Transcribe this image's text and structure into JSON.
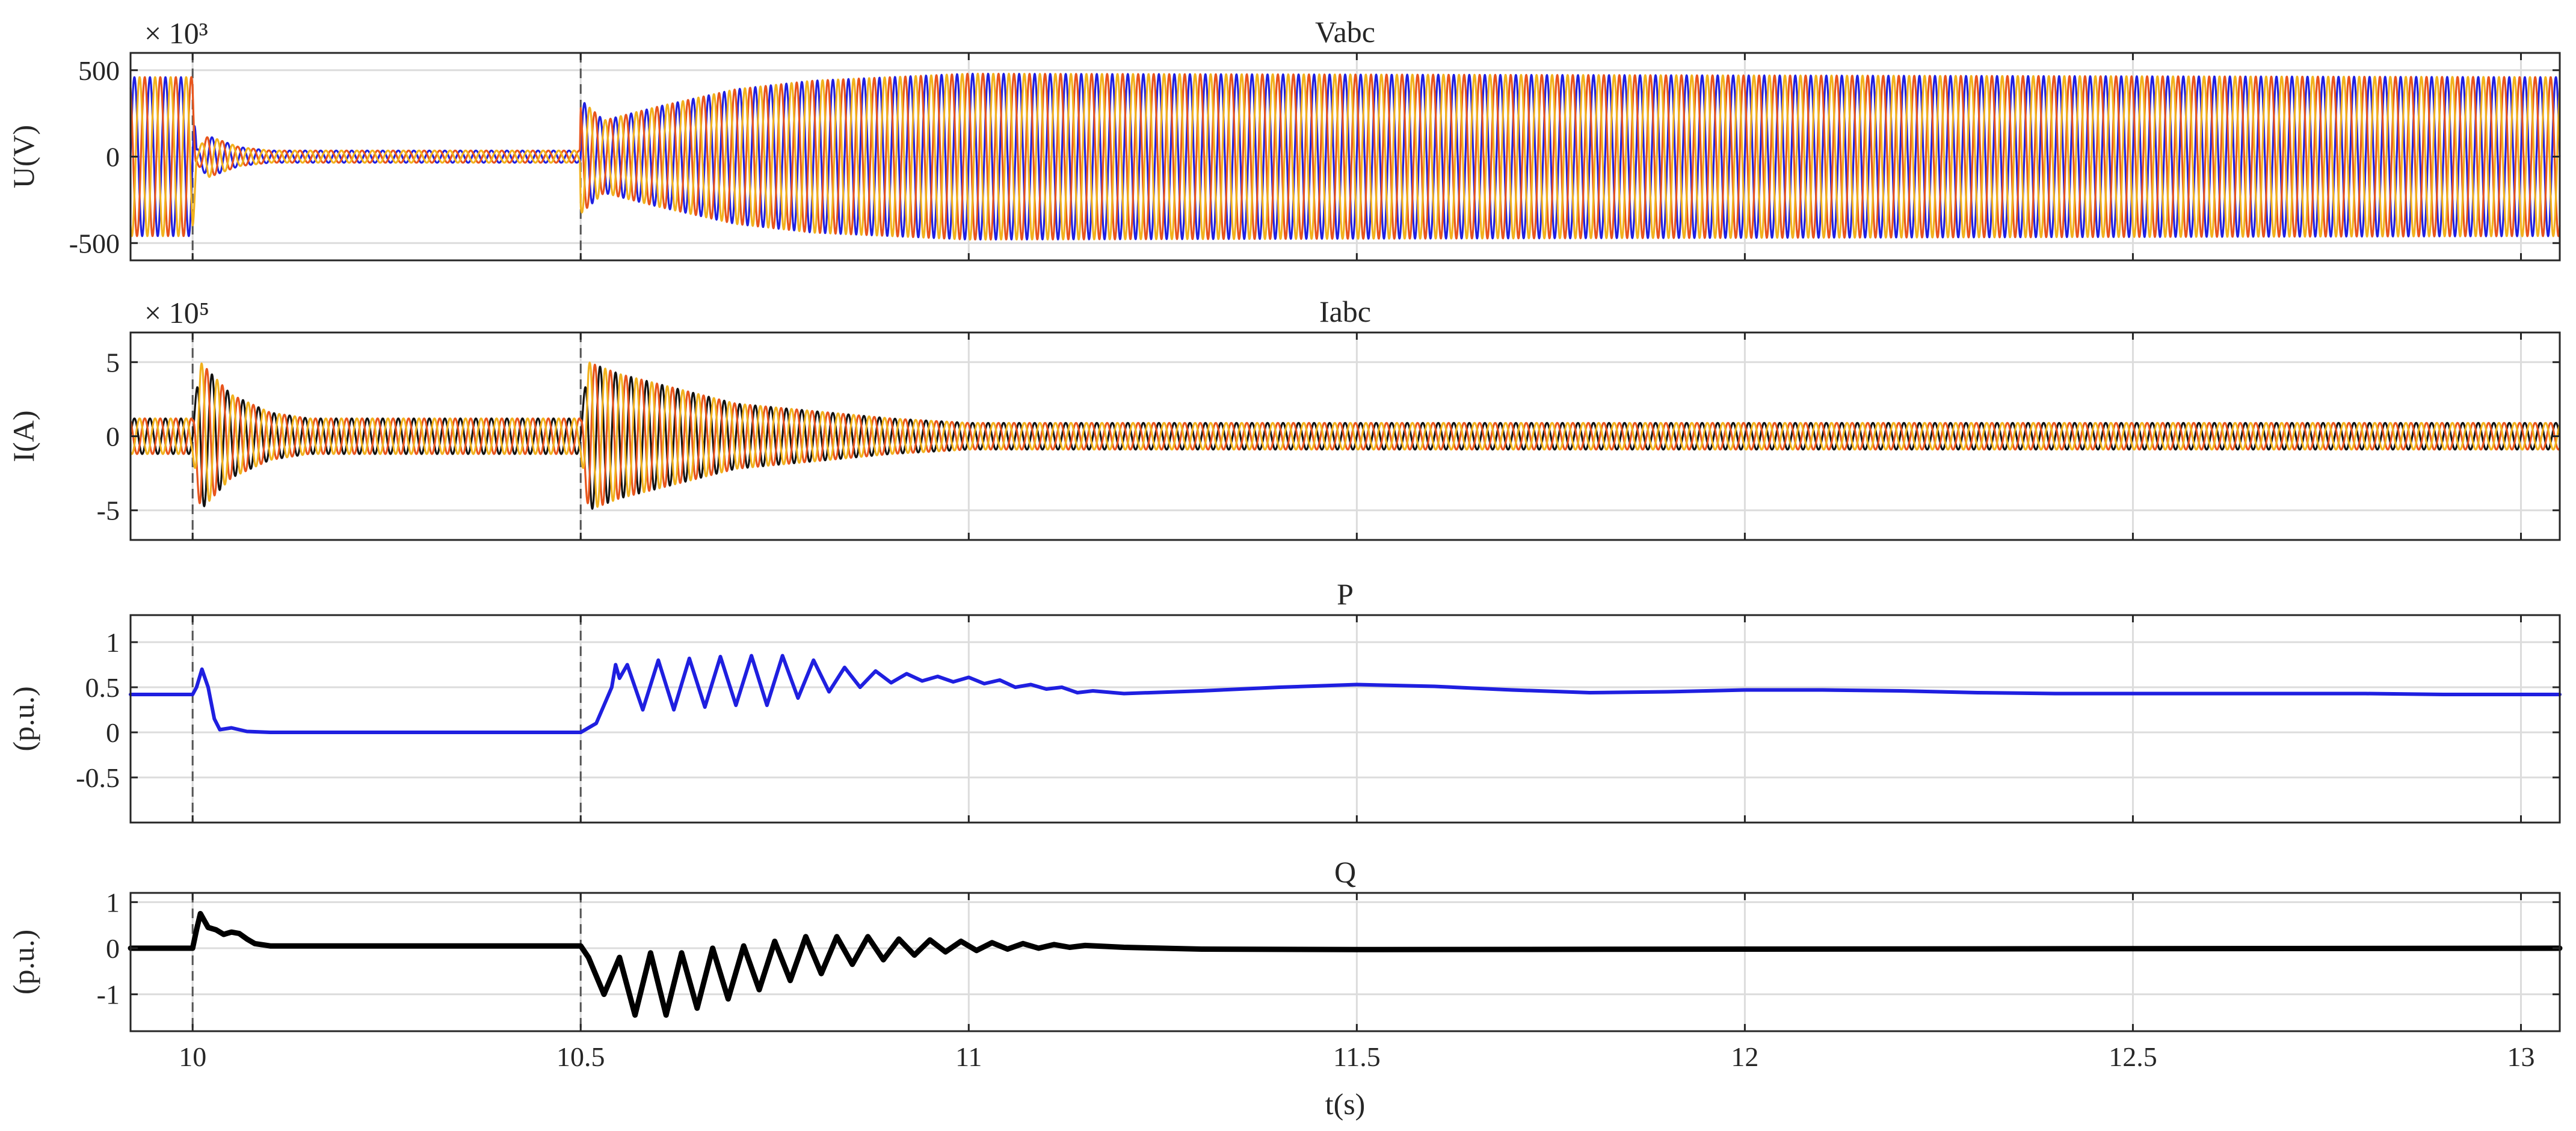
{
  "chart_data": [
    {
      "type": "line",
      "title": "Vabc",
      "ylabel": "U(V)",
      "exponent_label": "× 10³",
      "xlim": [
        9.92,
        13.05
      ],
      "ylim": [
        -600,
        600
      ],
      "yticks": [
        500,
        0,
        -500
      ],
      "xticks": [
        10,
        10.5,
        11,
        11.5,
        12,
        12.5,
        13
      ],
      "grid": true,
      "frequency_hz": 50,
      "colors": [
        "#1f1fe0",
        "#e8551c",
        "#f2b21e"
      ],
      "series": [
        {
          "phase": 0,
          "x": [
            9.92,
            10.0,
            10.005,
            10.02,
            10.06,
            10.1,
            10.499,
            10.5,
            10.53,
            10.6,
            10.7,
            10.8,
            10.9,
            11.0,
            11.5,
            12.0,
            12.5,
            13.05
          ],
          "amplitude": [
            460,
            460,
            40,
            120,
            55,
            35,
            35,
            330,
            210,
            290,
            390,
            440,
            460,
            480,
            475,
            470,
            465,
            460
          ]
        },
        {
          "phase": 120,
          "x": [
            9.92,
            10.0,
            10.005,
            10.02,
            10.06,
            10.1,
            10.499,
            10.5,
            10.53,
            10.6,
            10.7,
            10.8,
            10.9,
            11.0,
            11.5,
            12.0,
            12.5,
            13.05
          ],
          "amplitude": [
            460,
            460,
            40,
            120,
            55,
            35,
            35,
            330,
            210,
            290,
            390,
            440,
            460,
            480,
            475,
            470,
            465,
            460
          ]
        },
        {
          "phase": 240,
          "x": [
            9.92,
            10.0,
            10.005,
            10.02,
            10.06,
            10.1,
            10.499,
            10.5,
            10.53,
            10.6,
            10.7,
            10.8,
            10.9,
            11.0,
            11.5,
            12.0,
            12.5,
            13.05
          ],
          "amplitude": [
            460,
            460,
            40,
            120,
            55,
            35,
            35,
            330,
            210,
            290,
            390,
            440,
            460,
            480,
            475,
            470,
            465,
            460
          ]
        }
      ]
    },
    {
      "type": "line",
      "title": "Iabc",
      "ylabel": "I(A)",
      "exponent_label": "× 10⁵",
      "xlim": [
        9.92,
        13.05
      ],
      "ylim": [
        -7,
        7
      ],
      "yticks": [
        5,
        0,
        -5
      ],
      "xticks": [
        10,
        10.5,
        11,
        11.5,
        12,
        12.5,
        13
      ],
      "grid": true,
      "frequency_hz": 50,
      "colors": [
        "#111111",
        "#e8551c",
        "#f2b21e"
      ],
      "series": [
        {
          "phase": 0,
          "x": [
            9.92,
            10.0,
            10.01,
            10.05,
            10.1,
            10.15,
            10.5,
            10.51,
            10.55,
            10.7,
            10.9,
            11.0,
            13.05
          ],
          "amplitude": [
            1.2,
            1.2,
            5.0,
            2.8,
            1.6,
            1.2,
            1.2,
            5.0,
            4.2,
            2.2,
            1.2,
            0.9,
            0.9
          ]
        },
        {
          "phase": 120,
          "x": [
            9.92,
            10.0,
            10.01,
            10.05,
            10.1,
            10.15,
            10.5,
            10.51,
            10.55,
            10.7,
            10.9,
            11.0,
            13.05
          ],
          "amplitude": [
            1.2,
            1.2,
            5.0,
            2.8,
            1.6,
            1.2,
            1.2,
            5.0,
            4.2,
            2.2,
            1.2,
            0.9,
            0.9
          ]
        },
        {
          "phase": 240,
          "x": [
            9.92,
            10.0,
            10.01,
            10.05,
            10.1,
            10.15,
            10.5,
            10.51,
            10.55,
            10.7,
            10.9,
            11.0,
            13.05
          ],
          "amplitude": [
            1.2,
            1.2,
            5.0,
            2.8,
            1.6,
            1.2,
            1.2,
            5.0,
            4.2,
            2.2,
            1.2,
            0.9,
            0.9
          ]
        }
      ]
    },
    {
      "type": "line",
      "title": "P",
      "ylabel": "(p.u.)",
      "xlim": [
        9.92,
        13.05
      ],
      "ylim": [
        -1,
        1.3
      ],
      "yticks": [
        1,
        0.5,
        0,
        -0.5
      ],
      "ytick_labels": [
        "1",
        "0.5",
        "0",
        "-0.5"
      ],
      "xticks": [
        10,
        10.5,
        11,
        11.5,
        12,
        12.5,
        13
      ],
      "grid": true,
      "color": "#1f1fe0",
      "series": [
        {
          "x": [
            9.92,
            10.0,
            10.005,
            10.012,
            10.02,
            10.028,
            10.035,
            10.05,
            10.07,
            10.1,
            10.2,
            10.3,
            10.4,
            10.5,
            10.51,
            10.52,
            10.53,
            10.54,
            10.545,
            10.55,
            10.56,
            10.58,
            10.6,
            10.62,
            10.64,
            10.66,
            10.68,
            10.7,
            10.72,
            10.74,
            10.76,
            10.78,
            10.8,
            10.82,
            10.84,
            10.86,
            10.88,
            10.9,
            10.92,
            10.94,
            10.96,
            10.98,
            11.0,
            11.02,
            11.04,
            11.06,
            11.08,
            11.1,
            11.12,
            11.14,
            11.16,
            11.2,
            11.3,
            11.4,
            11.5,
            11.6,
            11.7,
            11.8,
            11.9,
            12.0,
            12.1,
            12.2,
            12.3,
            12.4,
            12.5,
            12.6,
            12.7,
            12.8,
            12.9,
            13.0,
            13.05
          ],
          "values": [
            0.42,
            0.42,
            0.5,
            0.7,
            0.5,
            0.15,
            0.03,
            0.05,
            0.01,
            0.0,
            0.0,
            0.0,
            0.0,
            0.0,
            0.05,
            0.1,
            0.3,
            0.5,
            0.75,
            0.6,
            0.75,
            0.25,
            0.8,
            0.25,
            0.82,
            0.28,
            0.84,
            0.3,
            0.85,
            0.3,
            0.85,
            0.38,
            0.8,
            0.45,
            0.72,
            0.5,
            0.68,
            0.55,
            0.65,
            0.57,
            0.62,
            0.56,
            0.61,
            0.54,
            0.58,
            0.5,
            0.53,
            0.48,
            0.5,
            0.44,
            0.46,
            0.43,
            0.46,
            0.5,
            0.53,
            0.51,
            0.47,
            0.44,
            0.45,
            0.47,
            0.47,
            0.46,
            0.44,
            0.43,
            0.43,
            0.43,
            0.43,
            0.43,
            0.42,
            0.42,
            0.42
          ]
        }
      ]
    },
    {
      "type": "line",
      "title": "Q",
      "ylabel": "(p.u.)",
      "xlabel": "t(s)",
      "xlim": [
        9.92,
        13.05
      ],
      "ylim": [
        -1.8,
        1.2
      ],
      "yticks": [
        1,
        0,
        -1
      ],
      "xticks": [
        10,
        10.5,
        11,
        11.5,
        12,
        12.5,
        13
      ],
      "xtick_labels": [
        "10",
        "10.5",
        "11",
        "11.5",
        "12",
        "12.5",
        "13"
      ],
      "grid": true,
      "color": "#000000",
      "series": [
        {
          "x": [
            9.92,
            10.0,
            10.005,
            10.01,
            10.02,
            10.03,
            10.04,
            10.05,
            10.06,
            10.07,
            10.08,
            10.1,
            10.2,
            10.5,
            10.51,
            10.52,
            10.53,
            10.55,
            10.57,
            10.59,
            10.61,
            10.63,
            10.65,
            10.67,
            10.69,
            10.71,
            10.73,
            10.75,
            10.77,
            10.79,
            10.81,
            10.83,
            10.85,
            10.87,
            10.89,
            10.91,
            10.93,
            10.95,
            10.97,
            10.99,
            11.01,
            11.03,
            11.05,
            11.07,
            11.09,
            11.11,
            11.13,
            11.15,
            11.2,
            11.3,
            11.5,
            12.0,
            12.5,
            13.05
          ],
          "values": [
            0.0,
            0.0,
            0.4,
            0.75,
            0.45,
            0.4,
            0.3,
            0.35,
            0.32,
            0.2,
            0.1,
            0.05,
            0.05,
            0.05,
            -0.2,
            -0.6,
            -1.0,
            -0.2,
            -1.45,
            -0.1,
            -1.45,
            -0.1,
            -1.3,
            0.0,
            -1.1,
            0.05,
            -0.9,
            0.15,
            -0.7,
            0.25,
            -0.55,
            0.25,
            -0.35,
            0.25,
            -0.25,
            0.2,
            -0.15,
            0.18,
            -0.08,
            0.15,
            -0.05,
            0.12,
            -0.02,
            0.1,
            0.0,
            0.08,
            0.02,
            0.06,
            0.02,
            -0.02,
            -0.03,
            -0.02,
            -0.01,
            0.0
          ]
        }
      ]
    }
  ]
}
